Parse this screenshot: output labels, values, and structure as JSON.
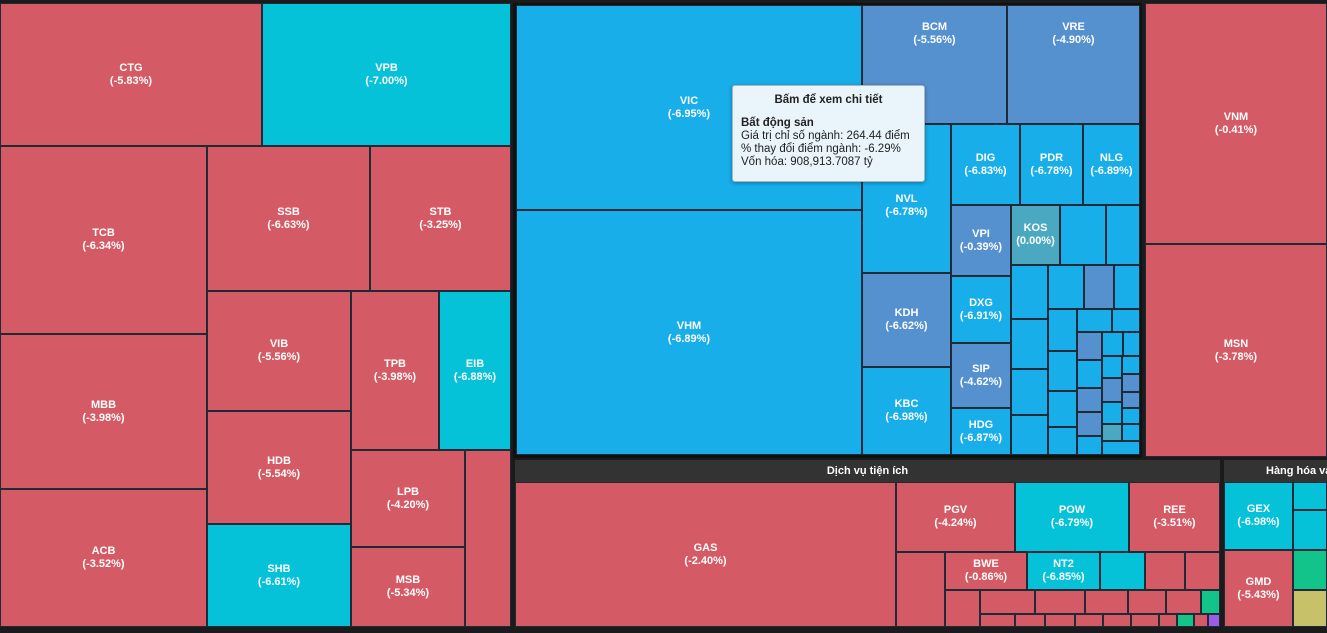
{
  "tooltip": {
    "hint": "Bấm để xem chi tiết",
    "sector": "Bất động sản",
    "index_value": "Giá trị chỉ số ngành: 264.44 điểm",
    "change": "% thay đổi điểm ngành: -6.29%",
    "market_cap": "Vốn hóa: 908,913.7087 tỷ"
  },
  "headers": {
    "utilities": "Dịch vụ tiện ích",
    "commodities": "Hàng hóa và"
  },
  "banks": {
    "ctg": {
      "ticker": "CTG",
      "change": "(-5.83%)"
    },
    "vpb": {
      "ticker": "VPB",
      "change": "(-7.00%)"
    },
    "tcb": {
      "ticker": "TCB",
      "change": "(-6.34%)"
    },
    "ssb": {
      "ticker": "SSB",
      "change": "(-6.63%)"
    },
    "stb": {
      "ticker": "STB",
      "change": "(-3.25%)"
    },
    "mbb": {
      "ticker": "MBB",
      "change": "(-3.98%)"
    },
    "vib": {
      "ticker": "VIB",
      "change": "(-5.56%)"
    },
    "tpb": {
      "ticker": "TPB",
      "change": "(-3.98%)"
    },
    "eib": {
      "ticker": "EIB",
      "change": "(-6.88%)"
    },
    "hdb": {
      "ticker": "HDB",
      "change": "(-5.54%)"
    },
    "lpb": {
      "ticker": "LPB",
      "change": "(-4.20%)"
    },
    "acb": {
      "ticker": "ACB",
      "change": "(-3.52%)"
    },
    "shb": {
      "ticker": "SHB",
      "change": "(-6.61%)"
    },
    "msb": {
      "ticker": "MSB",
      "change": "(-5.34%)"
    }
  },
  "realestate": {
    "vic": {
      "ticker": "VIC",
      "change": "(-6.95%)"
    },
    "vhm": {
      "ticker": "VHM",
      "change": "(-6.89%)"
    },
    "bcm": {
      "ticker": "BCM",
      "change": "(-5.56%)"
    },
    "vre": {
      "ticker": "VRE",
      "change": "(-4.90%)"
    },
    "nvl": {
      "ticker": "NVL",
      "change": "(-6.78%)"
    },
    "dig": {
      "ticker": "DIG",
      "change": "(-6.83%)"
    },
    "pdr": {
      "ticker": "PDR",
      "change": "(-6.78%)"
    },
    "nlg": {
      "ticker": "NLG",
      "change": "(-6.89%)"
    },
    "vpi": {
      "ticker": "VPI",
      "change": "(-0.39%)"
    },
    "kos": {
      "ticker": "KOS",
      "change": "(0.00%)"
    },
    "kdh": {
      "ticker": "KDH",
      "change": "(-6.62%)"
    },
    "dxg": {
      "ticker": "DXG",
      "change": "(-6.91%)"
    },
    "sip": {
      "ticker": "SIP",
      "change": "(-4.62%)"
    },
    "kbc": {
      "ticker": "KBC",
      "change": "(-6.98%)"
    },
    "hdg": {
      "ticker": "HDG",
      "change": "(-6.87%)"
    }
  },
  "consumer": {
    "vnm": {
      "ticker": "VNM",
      "change": "(-0.41%)"
    },
    "msn": {
      "ticker": "MSN",
      "change": "(-3.78%)"
    }
  },
  "utilities": {
    "gas": {
      "ticker": "GAS",
      "change": "(-2.40%)"
    },
    "pgv": {
      "ticker": "PGV",
      "change": "(-4.24%)"
    },
    "pow": {
      "ticker": "POW",
      "change": "(-6.79%)"
    },
    "ree": {
      "ticker": "REE",
      "change": "(-3.51%)"
    },
    "bwe": {
      "ticker": "BWE",
      "change": "(-0.86%)"
    },
    "nt2": {
      "ticker": "NT2",
      "change": "(-6.85%)"
    }
  },
  "commodities": {
    "gex": {
      "ticker": "GEX",
      "change": "(-6.98%)"
    },
    "gmd": {
      "ticker": "GMD",
      "change": "(-5.43%)"
    }
  }
}
